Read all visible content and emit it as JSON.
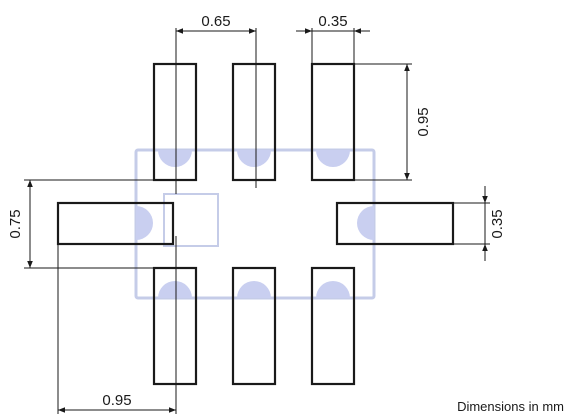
{
  "dimensions": {
    "pad_pitch": "0.65",
    "pad_width": "0.35",
    "pad_length": "0.95",
    "side_pad_span": "0.75",
    "side_pad_width": "0.35",
    "bottom_span": "0.95"
  },
  "note": "Dimensions in mm",
  "colors": {
    "outline": "#1a1a1a",
    "package_outline": "#c5cce8",
    "terminal_fill": "#c9cff0"
  }
}
